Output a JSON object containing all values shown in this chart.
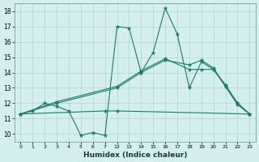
{
  "xlabel": "Humidex (Indice chaleur)",
  "background_color": "#d5efee",
  "grid_color": "#afd4d2",
  "line_color": "#1a7a6e",
  "ylim": [
    9.5,
    18.5
  ],
  "yticks": [
    10,
    11,
    12,
    13,
    14,
    15,
    16,
    17,
    18
  ],
  "xtick_labels": [
    "0",
    "1",
    "2",
    "3",
    "4",
    "5",
    "6",
    "7",
    "12",
    "13",
    "14",
    "15",
    "16",
    "17",
    "18",
    "19",
    "20",
    "21",
    "22",
    "23"
  ],
  "lines": [
    {
      "xidx": [
        0,
        1,
        2,
        3,
        4,
        5,
        6,
        7,
        8,
        9,
        10,
        11,
        12,
        13,
        14,
        15,
        16,
        17,
        18,
        19
      ],
      "y": [
        11.3,
        11.5,
        12.0,
        11.8,
        11.5,
        9.9,
        10.1,
        9.9,
        17.0,
        16.9,
        14.0,
        15.3,
        18.2,
        16.5,
        13.0,
        14.7,
        14.2,
        13.2,
        12.0,
        11.3
      ]
    },
    {
      "xidx": [
        0,
        3,
        8,
        10,
        12,
        14,
        15,
        16,
        17,
        18,
        19
      ],
      "y": [
        11.3,
        12.0,
        13.0,
        14.0,
        14.8,
        14.5,
        14.8,
        14.3,
        13.1,
        12.0,
        11.3
      ]
    },
    {
      "xidx": [
        0,
        3,
        8,
        10,
        12,
        14,
        15,
        16,
        17,
        18,
        19
      ],
      "y": [
        11.3,
        12.1,
        13.1,
        14.1,
        14.9,
        14.2,
        14.2,
        14.2,
        13.1,
        11.9,
        11.3
      ]
    },
    {
      "xidx": [
        0,
        7,
        8,
        19
      ],
      "y": [
        11.3,
        11.5,
        11.5,
        11.3
      ]
    }
  ]
}
